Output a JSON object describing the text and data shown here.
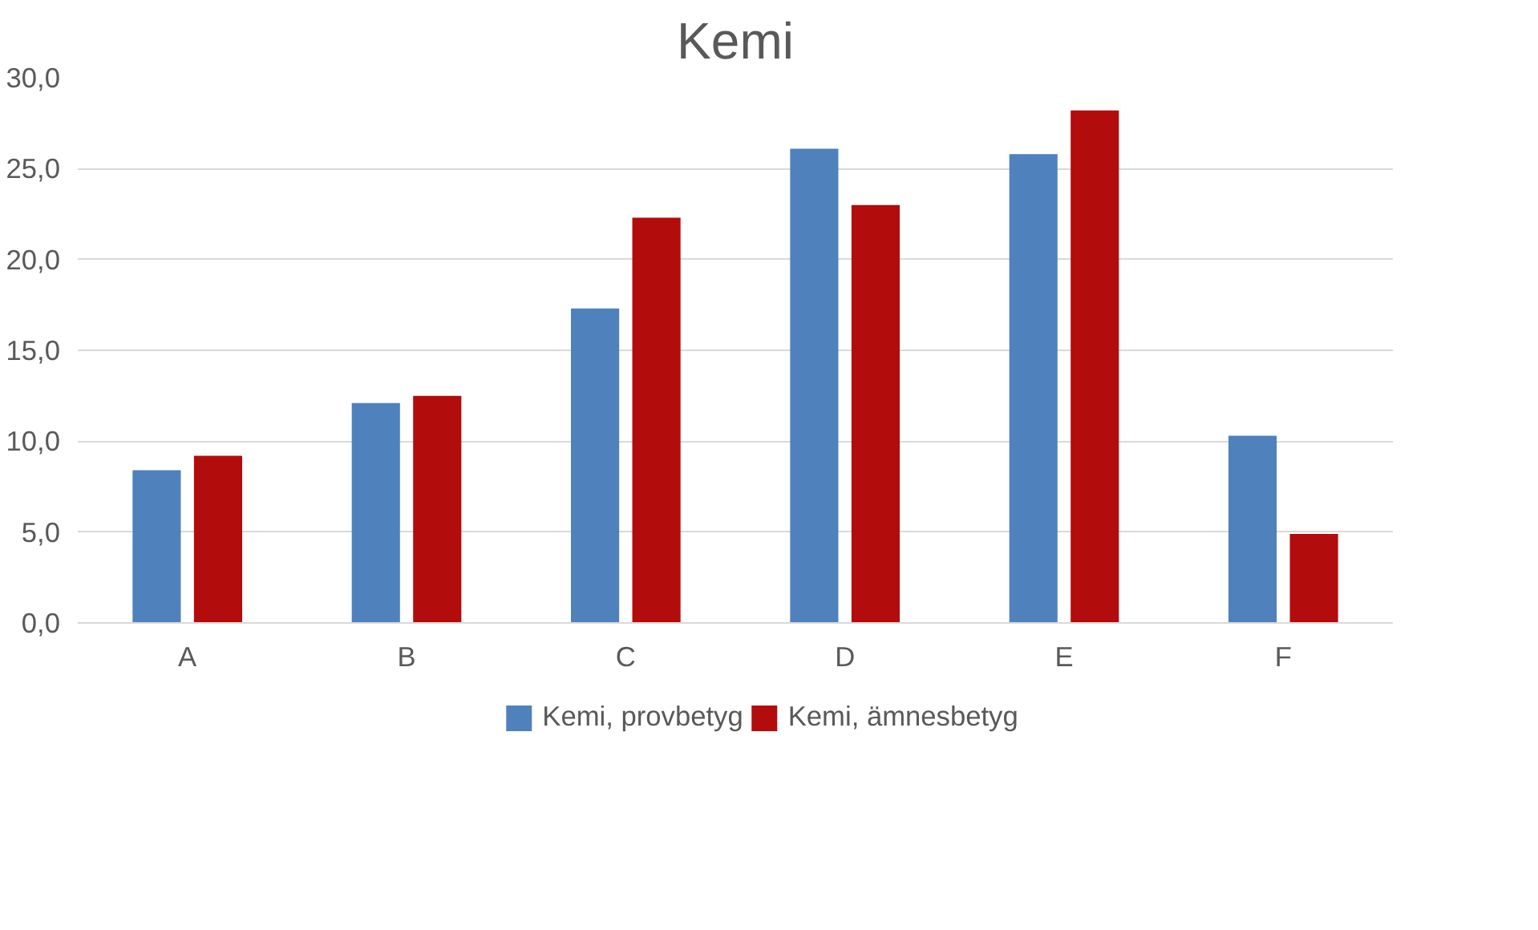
{
  "chart_data": {
    "type": "bar",
    "title": "Kemi",
    "categories": [
      "A",
      "B",
      "C",
      "D",
      "E",
      "F"
    ],
    "series": [
      {
        "name": "Kemi, provbetyg",
        "color": "#4f81bd",
        "values": [
          8.4,
          12.1,
          17.3,
          26.1,
          25.8,
          10.3
        ]
      },
      {
        "name": "Kemi, ämnesbetyg",
        "color": "#b30c0c",
        "values": [
          9.2,
          12.5,
          22.3,
          23.0,
          28.2,
          4.9
        ]
      }
    ],
    "ylim": [
      0,
      30
    ],
    "yticks": [
      {
        "value": 0,
        "label": "0,0"
      },
      {
        "value": 5,
        "label": "5,0"
      },
      {
        "value": 10,
        "label": "10,0"
      },
      {
        "value": 15,
        "label": "15,0"
      },
      {
        "value": 20,
        "label": "20,0"
      },
      {
        "value": 25,
        "label": "25,0"
      },
      {
        "value": 30,
        "label": "30,0"
      }
    ],
    "grid": "y",
    "legend": "bottom"
  }
}
